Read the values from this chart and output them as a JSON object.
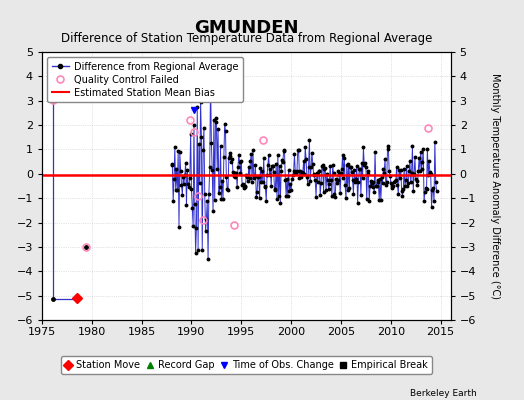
{
  "title": "GMUNDEN",
  "subtitle": "Difference of Station Temperature Data from Regional Average",
  "ylabel_right": "Monthly Temperature Anomaly Difference (°C)",
  "xlim": [
    1975,
    2016
  ],
  "ylim": [
    -6,
    5
  ],
  "yticks": [
    -6,
    -5,
    -4,
    -3,
    -2,
    -1,
    0,
    1,
    2,
    3,
    4,
    5
  ],
  "xticks": [
    1975,
    1980,
    1985,
    1990,
    1995,
    2000,
    2005,
    2010,
    2015
  ],
  "mean_bias": -0.05,
  "background_color": "#e8e8e8",
  "plot_bg_color": "#ffffff",
  "line_color": "#3333cc",
  "marker_color": "#000000",
  "bias_color": "#ff0000",
  "qc_color": "#ff88bb",
  "legend1_items": [
    "Difference from Regional Average",
    "Quality Control Failed",
    "Estimated Station Mean Bias"
  ],
  "legend2_items": [
    "Station Move",
    "Record Gap",
    "Time of Obs. Change",
    "Empirical Break"
  ],
  "station_move_x": 1978.5,
  "station_move_y": -5.1,
  "time_obs_x": 1990.3,
  "time_obs_y": 2.6,
  "fontsize_title": 13,
  "fontsize_subtitle": 8.5,
  "fontsize_ticks": 8,
  "fontsize_legend": 7,
  "fontsize_ylabel": 7,
  "seed": 77
}
